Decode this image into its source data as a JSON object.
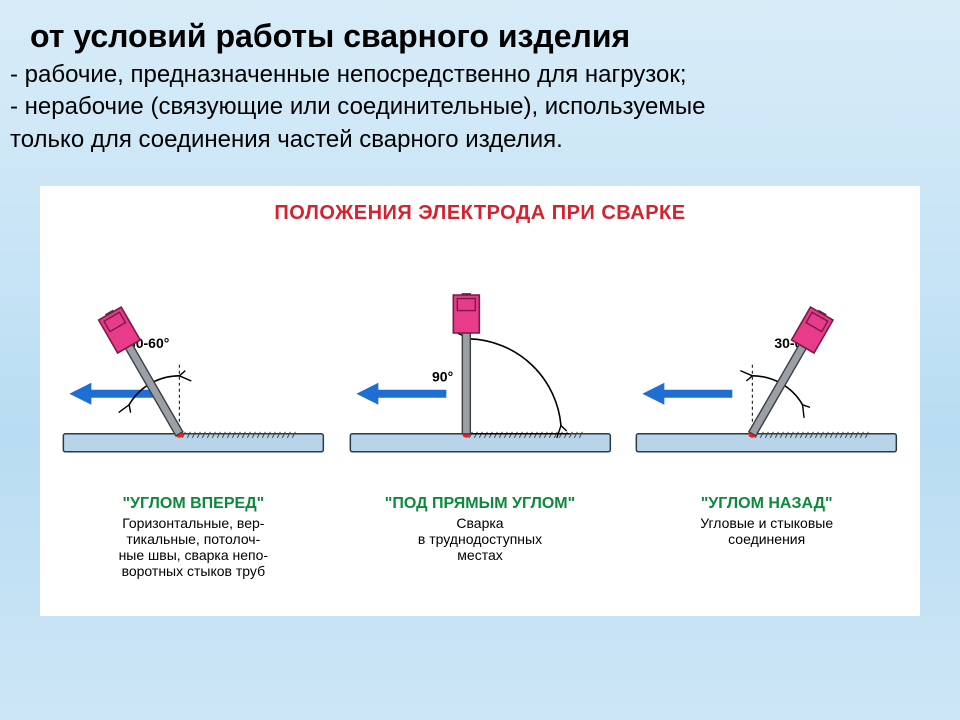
{
  "heading": {
    "text": "от условий работы сварного изделия",
    "fontsize": 32
  },
  "bullets": {
    "line1": "- рабочие, предназначенные непосредственно для нагрузок;",
    "line2": "- нерабочие (связующие или соединительные), используемые",
    "line3": "только для соединения частей сварного изделия.",
    "fontsize": 24
  },
  "diagram": {
    "background": "#ffffff",
    "title": {
      "text": "ПОЛОЖЕНИЯ ЭЛЕКТРОДА ПРИ СВАРКЕ",
      "color": "#d4232f",
      "fontsize": 20
    },
    "arrow_color": "#1f6ed4",
    "plate_fill": "#b8d4e8",
    "plate_stroke": "#2a3a4a",
    "electrode_fill": "#9aa0a6",
    "electrode_stroke": "#3a3f44",
    "holder_fill": "#e83b8a",
    "holder_stroke": "#7a1a45",
    "angle_arc_color": "#000000",
    "spark_color": "#ff1a1a",
    "panels": [
      {
        "key": "forward",
        "angle_label": "30-60°",
        "electrode_angle_deg": 120,
        "arc": {
          "start_deg": 90,
          "end_deg": 150,
          "r": 58
        },
        "title": "\"УГЛОМ ВПЕРЕД\"",
        "title_color": "#0a8a3a",
        "desc": "Горизонтальные, вер-\nтикальные, потолоч-\nные швы, сварка непо-\nворотных стыков труб"
      },
      {
        "key": "right",
        "angle_label": "90°",
        "electrode_angle_deg": 90,
        "arc": {
          "start_deg": 5,
          "end_deg": 88,
          "r": 95
        },
        "title": "\"ПОД ПРЯМЫМ УГЛОМ\"",
        "title_color": "#0a8a3a",
        "desc": "Сварка\nв труднодоступных\nместах"
      },
      {
        "key": "back",
        "angle_label": "30-60°",
        "electrode_angle_deg": 60,
        "arc": {
          "start_deg": 30,
          "end_deg": 90,
          "r": 58
        },
        "title": "\"УГЛОМ НАЗАД\"",
        "title_color": "#0a8a3a",
        "desc": "Угловые и стыковые\nсоединения"
      }
    ],
    "label_fontsize": 14,
    "title_fontsize": 16,
    "desc_fontsize": 14
  }
}
